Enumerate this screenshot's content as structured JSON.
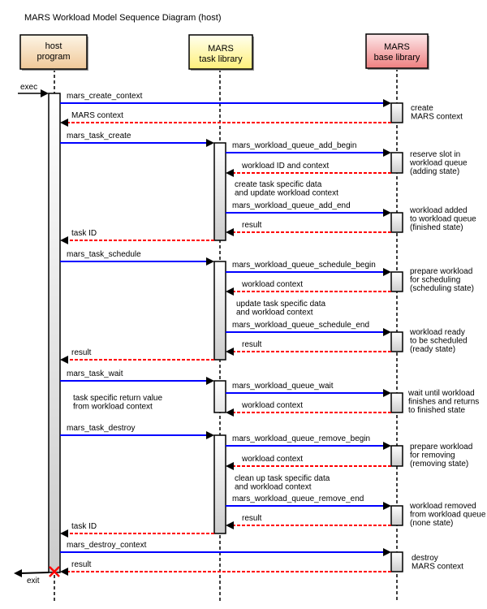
{
  "title": "MARS Workload Model Sequence Diagram (host)",
  "colors": {
    "call": "#0000ff",
    "return": "#ff0000",
    "destroy_mark": "#ff0000"
  },
  "participants": [
    {
      "id": "host",
      "lines": [
        "host",
        "program"
      ],
      "fill_top": "#fdf5e6",
      "fill_bottom": "#f0c898"
    },
    {
      "id": "task",
      "lines": [
        "MARS",
        "task library"
      ],
      "fill_top": "#fffff0",
      "fill_bottom": "#fff07a"
    },
    {
      "id": "base",
      "lines": [
        "MARS",
        "base library"
      ],
      "fill_top": "#fde8ea",
      "fill_bottom": "#ee8080"
    }
  ],
  "entry": {
    "label": "exec"
  },
  "exit": {
    "label": "exit"
  },
  "messages": [
    {
      "from": "host",
      "to": "base",
      "type": "call",
      "label": "mars_create_context"
    },
    {
      "from": "base",
      "to": "host",
      "type": "return",
      "label": "MARS context"
    },
    {
      "from": "host",
      "to": "task",
      "type": "call",
      "label": "mars_task_create"
    },
    {
      "from": "task",
      "to": "base",
      "type": "call",
      "label": "mars_workload_queue_add_begin"
    },
    {
      "from": "base",
      "to": "task",
      "type": "return",
      "label": "workload ID and context"
    },
    {
      "from": "task",
      "to": "base",
      "type": "call",
      "label": "mars_workload_queue_add_end"
    },
    {
      "from": "base",
      "to": "task",
      "type": "return",
      "label": "result"
    },
    {
      "from": "task",
      "to": "host",
      "type": "return",
      "label": "task ID"
    },
    {
      "from": "host",
      "to": "task",
      "type": "call",
      "label": "mars_task_schedule"
    },
    {
      "from": "task",
      "to": "base",
      "type": "call",
      "label": "mars_workload_queue_schedule_begin"
    },
    {
      "from": "base",
      "to": "task",
      "type": "return",
      "label": "workload context"
    },
    {
      "from": "task",
      "to": "base",
      "type": "call",
      "label": "mars_workload_queue_schedule_end"
    },
    {
      "from": "base",
      "to": "task",
      "type": "return",
      "label": "result"
    },
    {
      "from": "task",
      "to": "host",
      "type": "return",
      "label": "result"
    },
    {
      "from": "host",
      "to": "task",
      "type": "call",
      "label": "mars_task_wait"
    },
    {
      "from": "task",
      "to": "base",
      "type": "call",
      "label": "mars_workload_queue_wait"
    },
    {
      "from": "base",
      "to": "task",
      "type": "return",
      "label": "workload context"
    },
    {
      "from": "host",
      "to": "task",
      "type": "call",
      "label": "mars_task_destroy"
    },
    {
      "from": "task",
      "to": "base",
      "type": "call",
      "label": "mars_workload_queue_remove_begin"
    },
    {
      "from": "base",
      "to": "task",
      "type": "return",
      "label": "workload context"
    },
    {
      "from": "task",
      "to": "base",
      "type": "call",
      "label": "mars_workload_queue_remove_end"
    },
    {
      "from": "base",
      "to": "task",
      "type": "return",
      "label": "result"
    },
    {
      "from": "task",
      "to": "host",
      "type": "return",
      "label": "task ID"
    },
    {
      "from": "host",
      "to": "base",
      "type": "call",
      "label": "mars_destroy_context"
    },
    {
      "from": "base",
      "to": "host",
      "type": "return",
      "label": "result"
    }
  ],
  "notes": [
    {
      "lines": [
        "create",
        "MARS context"
      ]
    },
    {
      "lines": [
        "reserve slot in",
        "workload queue",
        "(adding state)"
      ]
    },
    {
      "lines": [
        "create task specific data",
        "and update workload context"
      ]
    },
    {
      "lines": [
        "workload added",
        "to workload queue",
        "(finished state)"
      ]
    },
    {
      "lines": [
        "prepare workload",
        "for scheduling",
        "(scheduling state)"
      ]
    },
    {
      "lines": [
        "update task specific data",
        "and workload context"
      ]
    },
    {
      "lines": [
        "workload ready",
        "to be scheduled",
        "(ready state)"
      ]
    },
    {
      "lines": [
        "wait until workload",
        "finishes and returns",
        "to finished state"
      ]
    },
    {
      "lines": [
        "task specific return value",
        "from workload context"
      ]
    },
    {
      "lines": [
        "prepare workload",
        "for removing",
        "(removing state)"
      ]
    },
    {
      "lines": [
        "clean up task specific data",
        "and workload context"
      ]
    },
    {
      "lines": [
        "workload removed",
        "from workload queue",
        "(none state)"
      ]
    },
    {
      "lines": [
        "destroy",
        "MARS context"
      ]
    }
  ]
}
